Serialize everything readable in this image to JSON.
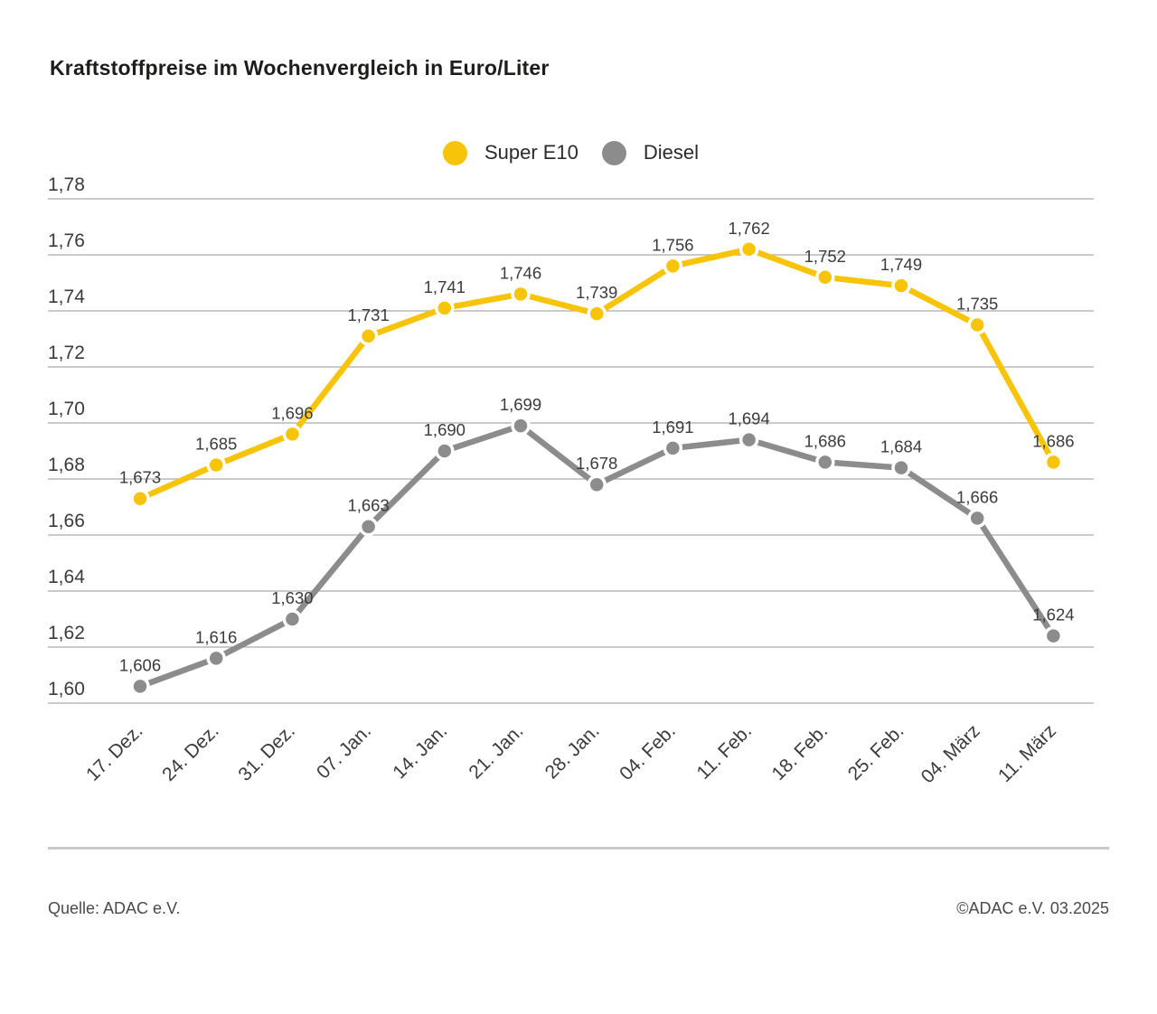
{
  "footer": {
    "source": "Quelle: ADAC e.V.",
    "copyright": "©ADAC e.V. 03.2025"
  },
  "chart_data": {
    "type": "line",
    "title": "Kraftstoffpreise im Wochenvergleich in Euro/Liter",
    "categories": [
      "17. Dez.",
      "24. Dez.",
      "31. Dez.",
      "07. Jan.",
      "14. Jan.",
      "21. Jan.",
      "28. Jan.",
      "04. Feb.",
      "11. Feb.",
      "18. Feb.",
      "25. Feb.",
      "04. März",
      "11. März"
    ],
    "series": [
      {
        "name": "Super E10",
        "color": "#f7c409",
        "values": [
          1.673,
          1.685,
          1.696,
          1.731,
          1.741,
          1.746,
          1.739,
          1.756,
          1.762,
          1.752,
          1.749,
          1.735,
          1.686
        ],
        "value_labels": [
          "1,673",
          "1,685",
          "1,696",
          "1,731",
          "1,741",
          "1,746",
          "1,739",
          "1,756",
          "1,762",
          "1,752",
          "1,749",
          "1,735",
          "1,686"
        ]
      },
      {
        "name": "Diesel",
        "color": "#8c8c8c",
        "values": [
          1.606,
          1.616,
          1.63,
          1.663,
          1.69,
          1.699,
          1.678,
          1.691,
          1.694,
          1.686,
          1.684,
          1.666,
          1.624
        ],
        "value_labels": [
          "1,606",
          "1,616",
          "1,630",
          "1,663",
          "1,690",
          "1,699",
          "1,678",
          "1,691",
          "1,694",
          "1,686",
          "1,684",
          "1,666",
          "1,624"
        ]
      }
    ],
    "xlabel": "",
    "ylabel": "",
    "yticks": [
      "1,60",
      "1,62",
      "1,64",
      "1,66",
      "1,68",
      "1,70",
      "1,72",
      "1,74",
      "1,76",
      "1,78"
    ],
    "ylim": [
      1.6,
      1.78
    ],
    "decimal_separator": ",",
    "grid": true,
    "legend_position": "top-center",
    "value_labels_shown": true,
    "gridline_color": "#ababab",
    "text_color": "#3b3b3b"
  }
}
